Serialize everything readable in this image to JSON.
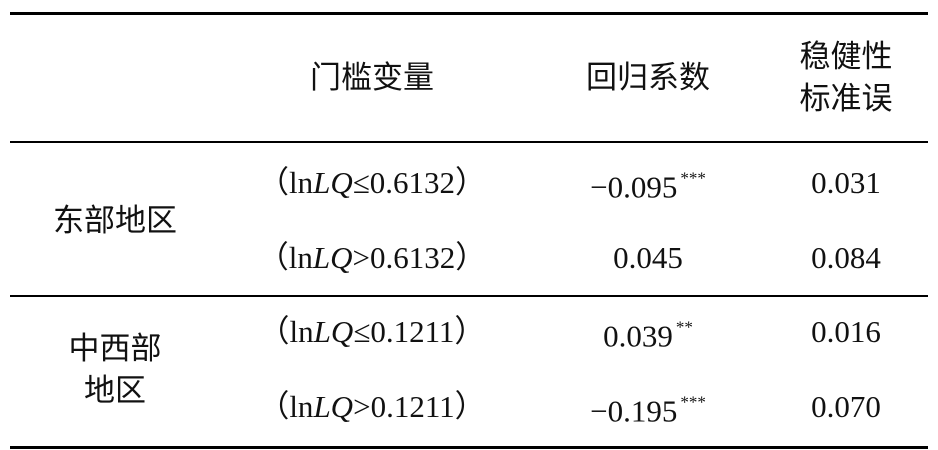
{
  "table": {
    "header": {
      "threshold": "门槛变量",
      "coef": "回归系数",
      "se": [
        "稳健性",
        "标准误"
      ]
    },
    "groups": [
      {
        "region": [
          "东部地区"
        ],
        "rows": [
          {
            "threshold": [
              "（ln",
              "LQ",
              "≤0.6132）"
            ],
            "coef": "−0.095",
            "sig": "***",
            "se": "0.031"
          },
          {
            "threshold": [
              "（ln",
              "LQ",
              ">0.6132）"
            ],
            "coef": "0.045",
            "se": "0.084"
          }
        ]
      },
      {
        "region": [
          "中西部",
          "地区"
        ],
        "rows": [
          {
            "threshold": [
              "（ln",
              "LQ",
              "≤0.1211）"
            ],
            "coef": "0.039",
            "sig": "**",
            "se": "0.016"
          },
          {
            "threshold": [
              "（ln",
              "LQ",
              ">0.1211）"
            ],
            "coef": "−0.195",
            "sig": "***",
            "se": "0.070"
          }
        ]
      }
    ]
  }
}
